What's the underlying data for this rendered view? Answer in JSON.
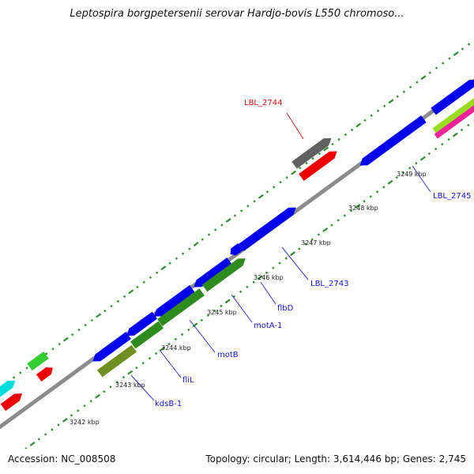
{
  "title": "Leptospira borgpetersenii serovar Hardjo-bovis L550 chromoso...",
  "footer": {
    "accession": "Accession: NC_008508",
    "topology": "Topology: circular; Length: 3,614,446 bp; Genes: 2,745"
  },
  "colors": {
    "backbone": "#8c8c8c",
    "dots": "#2a8f2a",
    "label_blue": "#1515cc",
    "label_red": "#cc1111",
    "leader": "#3535dd",
    "leader_red": "#dd2222"
  },
  "ticks": [
    {
      "label": "3242 kbp"
    },
    {
      "label": "3243 kbp"
    },
    {
      "label": "3244 kbp"
    },
    {
      "label": "3245 kbp"
    },
    {
      "label": "3246 kbp"
    },
    {
      "label": "3247 kbp"
    },
    {
      "label": "3248 kbp"
    },
    {
      "label": "3249 kbp"
    }
  ],
  "gene_labels": [
    {
      "text": "LBL_2744",
      "color": "red"
    },
    {
      "text": "LBL_2745",
      "color": "blue"
    },
    {
      "text": "LBL_2743",
      "color": "blue"
    },
    {
      "text": "flbD",
      "color": "blue"
    },
    {
      "text": "motA-1",
      "color": "blue"
    },
    {
      "text": "motB",
      "color": "blue"
    },
    {
      "text": "fliL",
      "color": "blue"
    },
    {
      "text": "kdsB-1",
      "color": "blue"
    }
  ],
  "features": [
    {
      "name": "blue-cds",
      "color": "#0000ee"
    },
    {
      "name": "blue-cds",
      "color": "#0000ee"
    },
    {
      "name": "blue-cds",
      "color": "#0000ee"
    },
    {
      "name": "blue-cds",
      "color": "#0000ee"
    },
    {
      "name": "blue-cds",
      "color": "#0000ee"
    },
    {
      "name": "blue-cds",
      "color": "#0000ee"
    },
    {
      "name": "blue-cds",
      "color": "#0000ee"
    },
    {
      "name": "blue-cds",
      "color": "#0000ee"
    },
    {
      "name": "green-cds",
      "color": "#2e8b1e"
    },
    {
      "name": "green-cds",
      "color": "#2e8b1e"
    },
    {
      "name": "green-cds",
      "color": "#2e8b1e"
    },
    {
      "name": "olive-cds",
      "color": "#6f8f20"
    },
    {
      "name": "gray-feature",
      "color": "#606060"
    },
    {
      "name": "red-feature",
      "color": "#ee0000"
    },
    {
      "name": "green-feature",
      "color": "#33cc33"
    },
    {
      "name": "red-feature",
      "color": "#ee0000"
    },
    {
      "name": "cyan-feature",
      "color": "#00dddd"
    },
    {
      "name": "red-feature",
      "color": "#ee0000"
    },
    {
      "name": "lime-feature",
      "color": "#99dd22"
    },
    {
      "name": "magenta-feature",
      "color": "#ee2299"
    }
  ]
}
